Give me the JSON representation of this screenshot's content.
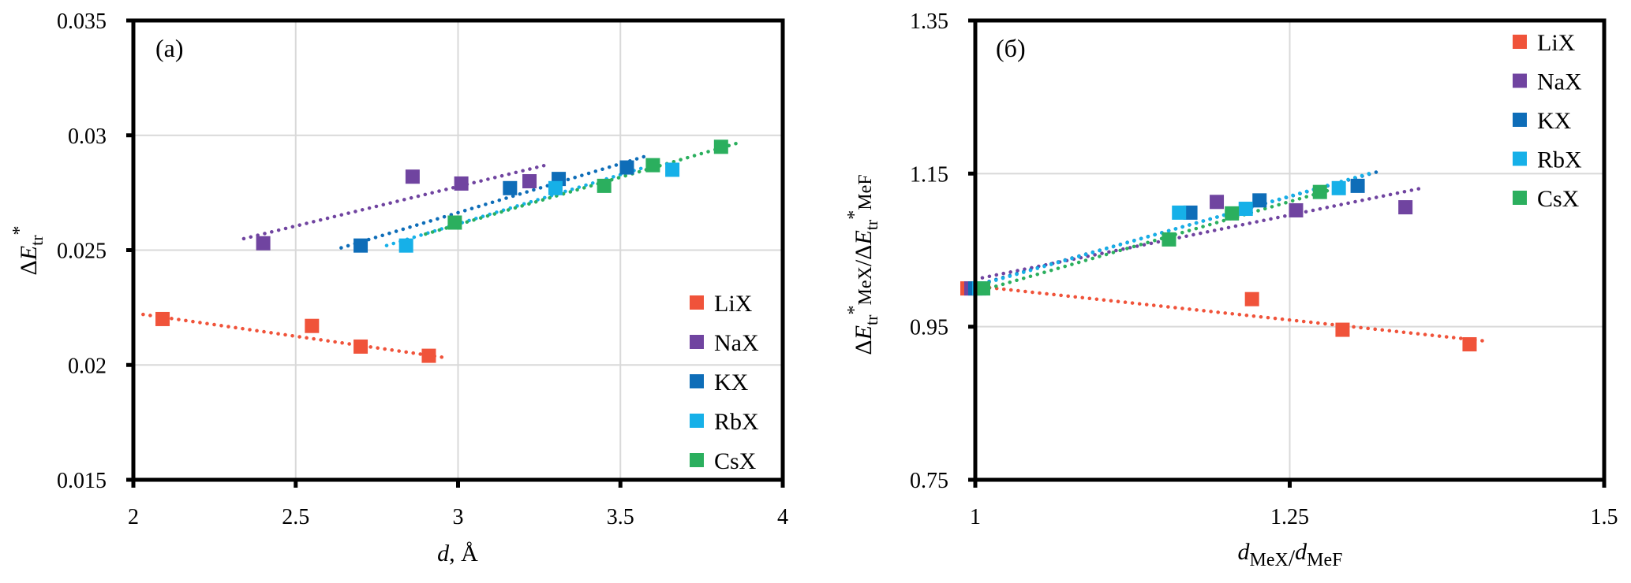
{
  "figure": {
    "panels": [
      "a",
      "b"
    ]
  },
  "chart_data": [
    {
      "type": "scatter",
      "panel_label": "(a)",
      "title": "",
      "xlabel": "d, Å",
      "xlabel_parts": {
        "var": "d",
        "rest": ", Å"
      },
      "ylabel": "ΔE_tr*",
      "ylabel_parts": {
        "delta": "Δ",
        "var": "E",
        "sub": "tr",
        "sup": "*"
      },
      "xlim": [
        2,
        4
      ],
      "ylim": [
        0.015,
        0.035
      ],
      "xticks": [
        2,
        2.5,
        3,
        3.5,
        4
      ],
      "xtick_labels": [
        "2",
        "2.5",
        "3",
        "3.5",
        "4"
      ],
      "yticks": [
        0.015,
        0.02,
        0.025,
        0.03,
        0.035
      ],
      "ytick_labels": [
        "0.015",
        "0.02",
        "0.025",
        "0.03",
        "0.035"
      ],
      "grid": true,
      "legend_position": "bottom-right",
      "trendline_style": "dotted linear",
      "series": [
        {
          "name": "LiX",
          "color": "#F0533A",
          "points": [
            [
              2.09,
              0.022
            ],
            [
              2.55,
              0.0217
            ],
            [
              2.7,
              0.0208
            ],
            [
              2.91,
              0.0204
            ]
          ],
          "trendline": [
            [
              2.03,
              0.0222
            ],
            [
              2.97,
              0.0203
            ]
          ]
        },
        {
          "name": "NaX",
          "color": "#7044A0",
          "points": [
            [
              2.4,
              0.0253
            ],
            [
              2.86,
              0.0282
            ],
            [
              3.01,
              0.0279
            ],
            [
              3.22,
              0.028
            ]
          ],
          "trendline": [
            [
              2.34,
              0.0255
            ],
            [
              3.27,
              0.0287
            ]
          ]
        },
        {
          "name": "KX",
          "color": "#0E6DB8",
          "points": [
            [
              2.7,
              0.0252
            ],
            [
              3.16,
              0.0277
            ],
            [
              3.31,
              0.0281
            ],
            [
              3.52,
              0.0286
            ]
          ],
          "trendline": [
            [
              2.64,
              0.0251
            ],
            [
              3.58,
              0.0291
            ]
          ]
        },
        {
          "name": "RbX",
          "color": "#16B0E8",
          "points": [
            [
              2.84,
              0.0252
            ],
            [
              3.3,
              0.0277
            ],
            [
              3.66,
              0.0285
            ]
          ],
          "trendline": [
            [
              2.78,
              0.0252
            ],
            [
              3.62,
              0.0288
            ]
          ]
        },
        {
          "name": "CsX",
          "color": "#2BAF5E",
          "points": [
            [
              2.99,
              0.0262
            ],
            [
              3.45,
              0.0278
            ],
            [
              3.6,
              0.0287
            ],
            [
              3.81,
              0.0295
            ]
          ],
          "trendline": [
            [
              2.9,
              0.0257
            ],
            [
              3.87,
              0.0297
            ]
          ]
        }
      ]
    },
    {
      "type": "scatter",
      "panel_label": "(б)",
      "title": "",
      "xlabel": "d_MeX/d_MeF",
      "xlabel_parts": {
        "var1": "d",
        "sub1": "MeX",
        "slash": "/",
        "var2": "d",
        "sub2": "MeF"
      },
      "ylabel": "ΔE_tr*_MeX/ΔE_tr*_MeF",
      "ylabel_parts": {
        "delta": "Δ",
        "var": "E",
        "sub": "tr",
        "sup": "*",
        "sub_num": "MeX",
        "slash": "/",
        "sub_den": "MeF"
      },
      "xlim": [
        1,
        1.5
      ],
      "ylim": [
        0.75,
        1.35
      ],
      "xticks": [
        1,
        1.25,
        1.5
      ],
      "xtick_labels": [
        "1",
        "1.25",
        "1.5"
      ],
      "yticks": [
        0.75,
        0.95,
        1.15,
        1.35
      ],
      "ytick_labels": [
        "0.75",
        "0.95",
        "1.15",
        "1.35"
      ],
      "grid": true,
      "legend_position": "top-right",
      "trendline_style": "dotted linear",
      "series": [
        {
          "name": "LiX",
          "color": "#F0533A",
          "points": [
            [
              1.0,
              1.0
            ],
            [
              1.22,
              0.986
            ],
            [
              1.292,
              0.946
            ],
            [
              1.393,
              0.927
            ]
          ],
          "trendline": [
            [
              1.0,
              1.003
            ],
            [
              1.407,
              0.931
            ]
          ]
        },
        {
          "name": "NaX",
          "color": "#7044A0",
          "points": [
            [
              1.0,
              1.0
            ],
            [
              1.192,
              1.113
            ],
            [
              1.255,
              1.102
            ],
            [
              1.342,
              1.106
            ]
          ],
          "trendline": [
            [
              1.0,
              1.012
            ],
            [
              1.355,
              1.131
            ]
          ]
        },
        {
          "name": "KX",
          "color": "#0E6DB8",
          "points": [
            [
              1.0,
              1.0
            ],
            [
              1.171,
              1.099
            ],
            [
              1.226,
              1.115
            ],
            [
              1.304,
              1.134
            ]
          ],
          "trendline": [
            [
              1.0,
              1.004
            ],
            [
              1.319,
              1.152
            ]
          ]
        },
        {
          "name": "RbX",
          "color": "#16B0E8",
          "points": [
            [
              1.0,
              1.0
            ],
            [
              1.162,
              1.099
            ],
            [
              1.215,
              1.104
            ],
            [
              1.289,
              1.131
            ]
          ],
          "trendline": [
            [
              1.0,
              1.003
            ],
            [
              1.313,
              1.15
            ]
          ]
        },
        {
          "name": "CsX",
          "color": "#2BAF5E",
          "points": [
            [
              1.0,
              1.0
            ],
            [
              1.154,
              1.064
            ],
            [
              1.204,
              1.098
            ],
            [
              1.274,
              1.126
            ]
          ],
          "trendline": [
            [
              1.0,
              0.995
            ],
            [
              1.285,
              1.13
            ]
          ]
        }
      ]
    }
  ]
}
